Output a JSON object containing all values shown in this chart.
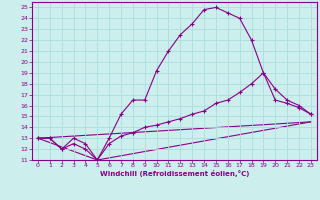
{
  "xlabel": "Windchill (Refroidissement éolien,°C)",
  "xlim": [
    -0.5,
    23.5
  ],
  "ylim": [
    11,
    25.5
  ],
  "xticks": [
    0,
    1,
    2,
    3,
    4,
    5,
    6,
    7,
    8,
    9,
    10,
    11,
    12,
    13,
    14,
    15,
    16,
    17,
    18,
    19,
    20,
    21,
    22,
    23
  ],
  "yticks": [
    11,
    12,
    13,
    14,
    15,
    16,
    17,
    18,
    19,
    20,
    21,
    22,
    23,
    24,
    25
  ],
  "bg_color": "#cceeed",
  "line_color": "#880088",
  "grid_color": "#aadddd",
  "series1": [
    [
      0,
      13
    ],
    [
      1,
      13
    ],
    [
      2,
      12
    ],
    [
      3,
      12.5
    ],
    [
      4,
      12
    ],
    [
      5,
      11
    ],
    [
      6,
      13
    ],
    [
      7,
      15.2
    ],
    [
      8,
      16.5
    ],
    [
      9,
      16.5
    ],
    [
      10,
      19.2
    ],
    [
      11,
      21
    ],
    [
      12,
      22.5
    ],
    [
      13,
      23.5
    ],
    [
      14,
      24.8
    ],
    [
      15,
      25
    ],
    [
      16,
      24.5
    ],
    [
      17,
      24
    ],
    [
      18,
      22
    ],
    [
      19,
      19
    ],
    [
      20,
      17.5
    ],
    [
      21,
      16.5
    ],
    [
      22,
      16
    ],
    [
      23,
      15.2
    ]
  ],
  "series2": [
    [
      0,
      13
    ],
    [
      1,
      13
    ],
    [
      2,
      12
    ],
    [
      3,
      13
    ],
    [
      4,
      12.5
    ],
    [
      5,
      11
    ],
    [
      6,
      12.5
    ],
    [
      7,
      13.2
    ],
    [
      8,
      13.5
    ],
    [
      9,
      14
    ],
    [
      10,
      14.2
    ],
    [
      11,
      14.5
    ],
    [
      12,
      14.8
    ],
    [
      13,
      15.2
    ],
    [
      14,
      15.5
    ],
    [
      15,
      16.2
    ],
    [
      16,
      16.5
    ],
    [
      17,
      17.2
    ],
    [
      18,
      18
    ],
    [
      19,
      19
    ],
    [
      20,
      16.5
    ],
    [
      21,
      16.2
    ],
    [
      22,
      15.8
    ],
    [
      23,
      15.2
    ]
  ],
  "series3": [
    [
      0,
      13
    ],
    [
      23,
      14.5
    ]
  ],
  "series4": [
    [
      0,
      13
    ],
    [
      5,
      11
    ],
    [
      23,
      14.5
    ]
  ]
}
